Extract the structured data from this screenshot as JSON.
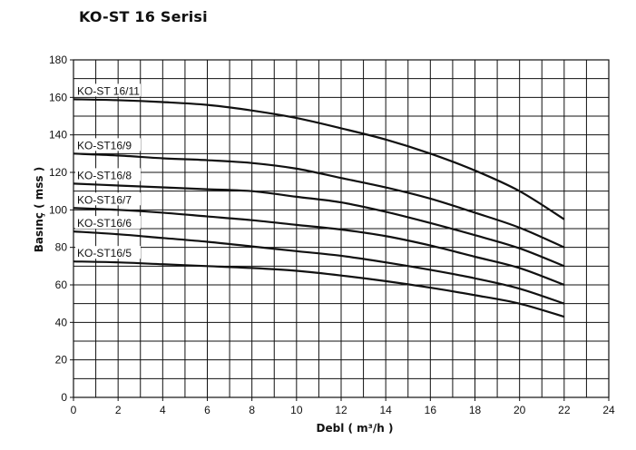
{
  "page": {
    "title": "KO-ST 16 Serisi"
  },
  "chart_data": {
    "type": "line",
    "title": "KO-ST 16 Serisi",
    "xlabel": "Debl ( m³/h )",
    "ylabel": "Basınç ( mss )",
    "xlim": [
      0,
      24
    ],
    "ylim": [
      0,
      180
    ],
    "x_ticks": [
      "0",
      "2",
      "4",
      "6",
      "8",
      "10",
      "12",
      "14",
      "16",
      "18",
      "20",
      "22",
      "24"
    ],
    "y_ticks": [
      "0",
      "20",
      "40",
      "60",
      "80",
      "100",
      "120",
      "140",
      "160",
      "180"
    ],
    "grid": true,
    "legend": "inline labels at left of each curve",
    "series": [
      {
        "name": "KO-ST 16/11",
        "x": [
          0,
          2,
          4,
          6,
          8,
          10,
          12,
          14,
          16,
          18,
          20,
          22
        ],
        "y": [
          159,
          158.5,
          157.5,
          156,
          153,
          149,
          143.5,
          137.5,
          130,
          121,
          110,
          95
        ]
      },
      {
        "name": "KO-ST16/9",
        "x": [
          0,
          2,
          4,
          6,
          8,
          10,
          12,
          14,
          16,
          18,
          20,
          22
        ],
        "y": [
          130,
          129,
          127.5,
          126.5,
          125,
          122,
          117,
          112,
          106,
          98.5,
          90.5,
          80
        ]
      },
      {
        "name": "KO-ST16/8",
        "x": [
          0,
          2,
          4,
          6,
          8,
          10,
          12,
          14,
          16,
          18,
          20,
          22
        ],
        "y": [
          114,
          113,
          112,
          111,
          110,
          107,
          104,
          99,
          93,
          86.5,
          79.5,
          70
        ]
      },
      {
        "name": "KO-ST16/7",
        "x": [
          0,
          2,
          4,
          6,
          8,
          10,
          12,
          14,
          16,
          18,
          20,
          22
        ],
        "y": [
          101,
          100,
          98.5,
          96.5,
          94.5,
          92,
          89.5,
          86,
          81,
          75,
          69,
          60
        ]
      },
      {
        "name": "KO-ST16/6",
        "x": [
          0,
          2,
          4,
          6,
          8,
          10,
          12,
          14,
          16,
          18,
          20,
          22
        ],
        "y": [
          88.5,
          87,
          85,
          83,
          80.5,
          78,
          75.5,
          72,
          68,
          63.5,
          58,
          50
        ]
      },
      {
        "name": "KO-ST16/5",
        "x": [
          0,
          2,
          4,
          6,
          8,
          10,
          12,
          14,
          16,
          18,
          20,
          22
        ],
        "y": [
          72.5,
          72,
          71,
          70,
          69,
          67.5,
          65,
          62,
          58.5,
          54.5,
          50,
          43
        ]
      }
    ],
    "colors": {
      "line": "#111111",
      "grid": "#111111",
      "background": "#ffffff"
    }
  }
}
